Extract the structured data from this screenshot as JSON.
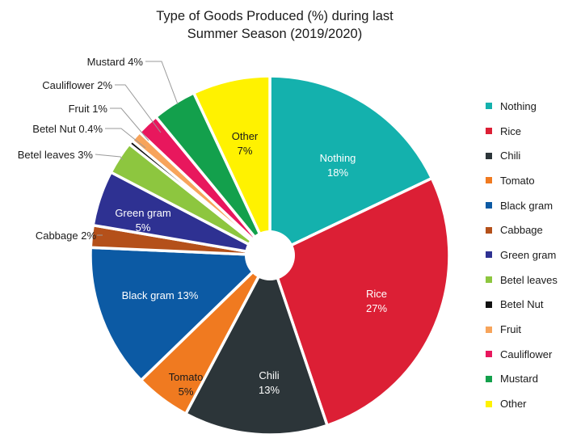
{
  "chart_data": {
    "type": "pie",
    "title": "Type of Goods Produced (%) during last Summer Season (2019/2020)",
    "title_lines": [
      "Type of Goods Produced (%) during last",
      "Summer Season (2019/2020)"
    ],
    "donut_hole": true,
    "legend_position": "right",
    "slices": [
      {
        "name": "Nothing",
        "value": 18,
        "color": "#14b1ad",
        "label": "Nothing",
        "pct_label": "18%"
      },
      {
        "name": "Rice",
        "value": 27,
        "color": "#dc1f35",
        "label": "Rice",
        "pct_label": "27%"
      },
      {
        "name": "Chili",
        "value": 13,
        "color": "#2c3539",
        "label": "Chili",
        "pct_label": "13%"
      },
      {
        "name": "Tomato",
        "value": 5,
        "color": "#f07a20",
        "label": "Tomato",
        "pct_label": "5%"
      },
      {
        "name": "Black gram",
        "value": 13,
        "color": "#0c5aa4",
        "label": "Black gram 13%"
      },
      {
        "name": "Cabbage",
        "value": 2,
        "color": "#b4501a",
        "label": "Cabbage 2%"
      },
      {
        "name": "Green gram",
        "value": 5,
        "color": "#2e3192",
        "label": "Green gram",
        "pct_label": "5%"
      },
      {
        "name": "Betel leaves",
        "value": 3,
        "color": "#8dc63f",
        "label": "Betel leaves 3%"
      },
      {
        "name": "Betel Nut",
        "value": 0.4,
        "color": "#111111",
        "label": "Betel Nut 0.4%"
      },
      {
        "name": "Fruit",
        "value": 1,
        "color": "#f7a45b",
        "label": "Fruit 1%"
      },
      {
        "name": "Cauliflower",
        "value": 2,
        "color": "#e8175d",
        "label": "Cauliflower 2%"
      },
      {
        "name": "Mustard",
        "value": 4,
        "color": "#13a04c",
        "label": "Mustard 4%"
      },
      {
        "name": "Other",
        "value": 7,
        "color": "#fff200",
        "label": "Other",
        "pct_label": "7%"
      }
    ]
  }
}
